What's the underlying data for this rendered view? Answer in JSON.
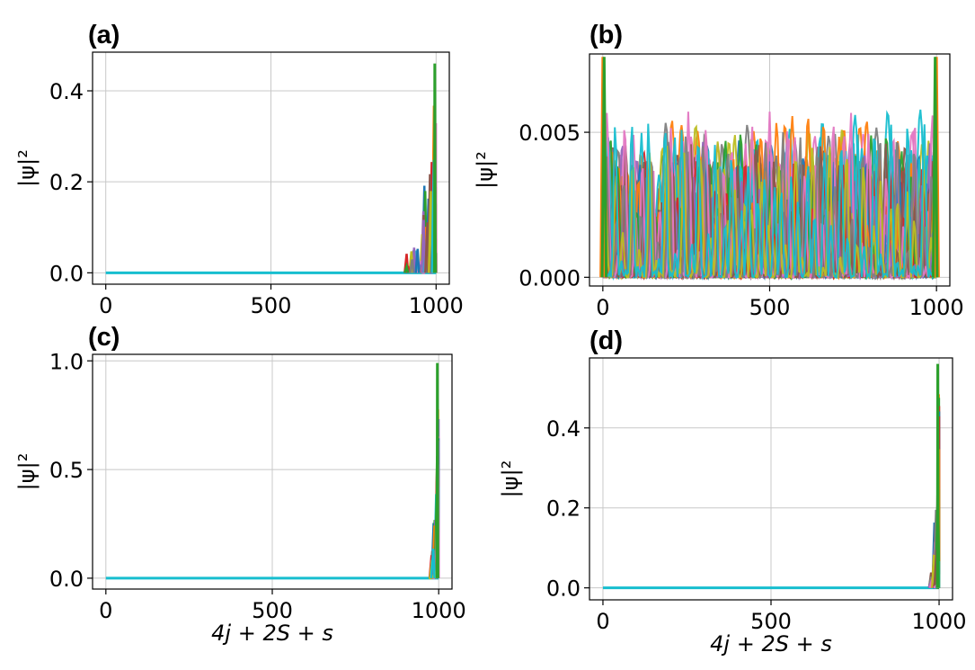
{
  "chart_data": [
    {
      "panel": "(a)",
      "type": "line",
      "ylabel": "|ψ|²",
      "xlabel": "",
      "xlim": [
        -40,
        1040
      ],
      "ylim": [
        -0.025,
        0.485
      ],
      "xticks": [
        0,
        500,
        1000
      ],
      "xtick_labels": [
        "0",
        "500",
        "1000"
      ],
      "yticks": [
        0.0,
        0.2,
        0.4
      ],
      "ytick_labels": [
        "0.0",
        "0.2",
        "0.4"
      ],
      "grid": true,
      "description_series": "many overlapping eigenstates localized at the right edge",
      "peak_max": 0.46,
      "edge": "right"
    },
    {
      "panel": "(b)",
      "type": "line",
      "ylabel": "|ψ|²",
      "xlabel": "",
      "xlim": [
        -40,
        1040
      ],
      "ylim": [
        -0.0003,
        0.0077
      ],
      "xticks": [
        0,
        500,
        1000
      ],
      "xtick_labels": [
        "0",
        "500",
        "1000"
      ],
      "yticks": [
        0.0,
        0.005
      ],
      "ytick_labels": [
        "0.000",
        "0.005"
      ],
      "grid": true,
      "peak_max": 0.0076,
      "bulk_max": 0.0058,
      "edge": "both"
    },
    {
      "panel": "(c)",
      "type": "line",
      "ylabel": "|ψ|²",
      "xlabel": "4j + 2S + s",
      "xlim": [
        -40,
        1040
      ],
      "ylim": [
        -0.05,
        1.03
      ],
      "xticks": [
        0,
        500,
        1000
      ],
      "xtick_labels": [
        "0",
        "500",
        "1000"
      ],
      "yticks": [
        0.0,
        0.5,
        1.0
      ],
      "ytick_labels": [
        "0.0",
        "0.5",
        "1.0"
      ],
      "grid": true,
      "peak_max": 0.99,
      "edge": "right"
    },
    {
      "panel": "(d)",
      "type": "line",
      "ylabel": "|ψ|²",
      "xlabel": "4j + 2S + s",
      "xlim": [
        -40,
        1040
      ],
      "ylim": [
        -0.03,
        0.575
      ],
      "xticks": [
        0,
        500,
        1000
      ],
      "xtick_labels": [
        "0",
        "500",
        "1000"
      ],
      "yticks": [
        0.0,
        0.2,
        0.4
      ],
      "ytick_labels": [
        "0.0",
        "0.2",
        "0.4"
      ],
      "grid": true,
      "peak_max": 0.56,
      "edge": "right"
    }
  ],
  "colors": {
    "series": [
      "#1f77b4",
      "#ff7f0e",
      "#2ca02c",
      "#d62728",
      "#9467bd",
      "#8c564b",
      "#e377c2",
      "#7f7f7f",
      "#bcbd22",
      "#17becf"
    ],
    "grid": "#c8c8c8",
    "axis": "#000000"
  }
}
